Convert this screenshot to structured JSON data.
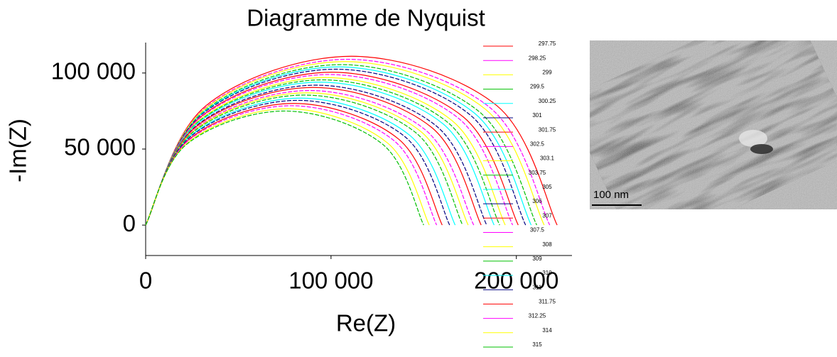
{
  "chart_data": {
    "type": "line",
    "title": "Diagramme de Nyquist",
    "x_label": "Re(Z)",
    "y_label": "-Im(Z)",
    "xlim": [
      0,
      230000
    ],
    "ylim": [
      -20000,
      120000
    ],
    "xticks": [
      0,
      {
        "value": 100000,
        "label": "100 000"
      },
      {
        "value": 200000,
        "label": "200 000"
      }
    ],
    "yticks": [
      0,
      {
        "value": 50000,
        "label": "50 000"
      },
      {
        "value": 100000,
        "label": "100 000"
      }
    ],
    "legend": "right",
    "series": [
      {
        "name": "297.75",
        "color": "#ff0000",
        "x": [
          0,
          32500,
          111000,
          189500,
          222000
        ],
        "values": [
          0,
          78500,
          111000,
          78500,
          0
        ]
      },
      {
        "name": "298.25",
        "color": "#ff00ff",
        "x": [
          0,
          32000,
          109000,
          186000,
          218000
        ],
        "values": [
          0,
          77000,
          109000,
          77000,
          0
        ]
      },
      {
        "name": "299",
        "color": "#ffff00",
        "x": [
          0,
          31500,
          107500,
          183500,
          215000
        ],
        "values": [
          0,
          76000,
          107500,
          76000,
          0
        ]
      },
      {
        "name": "299.5",
        "color": "#00c000",
        "x": [
          0,
          31000,
          105500,
          180000,
          211000
        ],
        "values": [
          0,
          74500,
          105500,
          74500,
          0
        ]
      },
      {
        "name": "300.25",
        "color": "#00ffff",
        "x": [
          0,
          30500,
          104000,
          177500,
          208000
        ],
        "values": [
          0,
          73500,
          104000,
          73500,
          0
        ]
      },
      {
        "name": "301",
        "color": "#000080",
        "x": [
          0,
          30000,
          102500,
          175000,
          205000
        ],
        "values": [
          0,
          72500,
          102500,
          72500,
          0
        ]
      },
      {
        "name": "301.75",
        "color": "#ff0000",
        "x": [
          0,
          29500,
          100500,
          171500,
          201000
        ],
        "values": [
          0,
          71000,
          100500,
          71000,
          0
        ]
      },
      {
        "name": "302.5",
        "color": "#ff00ff",
        "x": [
          0,
          29000,
          99000,
          169000,
          198000
        ],
        "values": [
          0,
          70000,
          99000,
          70000,
          0
        ]
      },
      {
        "name": "303.1",
        "color": "#ffff00",
        "x": [
          0,
          28500,
          97000,
          165500,
          194000
        ],
        "values": [
          0,
          68500,
          97000,
          68500,
          0
        ]
      },
      {
        "name": "303.75",
        "color": "#00c000",
        "x": [
          0,
          28000,
          95500,
          163000,
          191000
        ],
        "values": [
          0,
          67500,
          95500,
          67500,
          0
        ]
      },
      {
        "name": "305",
        "color": "#00ffff",
        "x": [
          0,
          27500,
          94000,
          160500,
          188000
        ],
        "values": [
          0,
          66500,
          94000,
          66500,
          0
        ]
      },
      {
        "name": "306",
        "color": "#000080",
        "x": [
          0,
          27000,
          92000,
          157000,
          184000
        ],
        "values": [
          0,
          65000,
          92000,
          65000,
          0
        ]
      },
      {
        "name": "307",
        "color": "#ff0000",
        "x": [
          0,
          26500,
          90500,
          154500,
          181000
        ],
        "values": [
          0,
          64000,
          90500,
          64000,
          0
        ]
      },
      {
        "name": "307.5",
        "color": "#ff00ff",
        "x": [
          0,
          26000,
          88500,
          151000,
          177000
        ],
        "values": [
          0,
          62500,
          88500,
          62500,
          0
        ]
      },
      {
        "name": "308",
        "color": "#ffff00",
        "x": [
          0,
          25500,
          87000,
          148500,
          174000
        ],
        "values": [
          0,
          61500,
          87000,
          61500,
          0
        ]
      },
      {
        "name": "309",
        "color": "#00c000",
        "x": [
          0,
          25000,
          85500,
          146000,
          171000
        ],
        "values": [
          0,
          60500,
          85500,
          60500,
          0
        ]
      },
      {
        "name": "310",
        "color": "#00ffff",
        "x": [
          0,
          24500,
          83500,
          142500,
          167000
        ],
        "values": [
          0,
          59000,
          83500,
          59000,
          0
        ]
      },
      {
        "name": "311",
        "color": "#000080",
        "x": [
          0,
          24000,
          82000,
          140000,
          164000
        ],
        "values": [
          0,
          58000,
          82000,
          58000,
          0
        ]
      },
      {
        "name": "311.75",
        "color": "#ff0000",
        "x": [
          0,
          23500,
          80000,
          136500,
          160000
        ],
        "values": [
          0,
          56500,
          80000,
          56500,
          0
        ]
      },
      {
        "name": "312.25",
        "color": "#ff00ff",
        "x": [
          0,
          23000,
          78500,
          134000,
          157000
        ],
        "values": [
          0,
          55500,
          78500,
          55500,
          0
        ]
      },
      {
        "name": "314",
        "color": "#ffff00",
        "x": [
          0,
          22500,
          76500,
          130500,
          153000
        ],
        "values": [
          0,
          54000,
          76500,
          54000,
          0
        ]
      },
      {
        "name": "315",
        "color": "#00c000",
        "x": [
          0,
          22000,
          75000,
          128000,
          150000
        ],
        "values": [
          0,
          53000,
          75000,
          53000,
          0
        ]
      }
    ]
  },
  "image": {
    "scale_label": "100 nm"
  }
}
